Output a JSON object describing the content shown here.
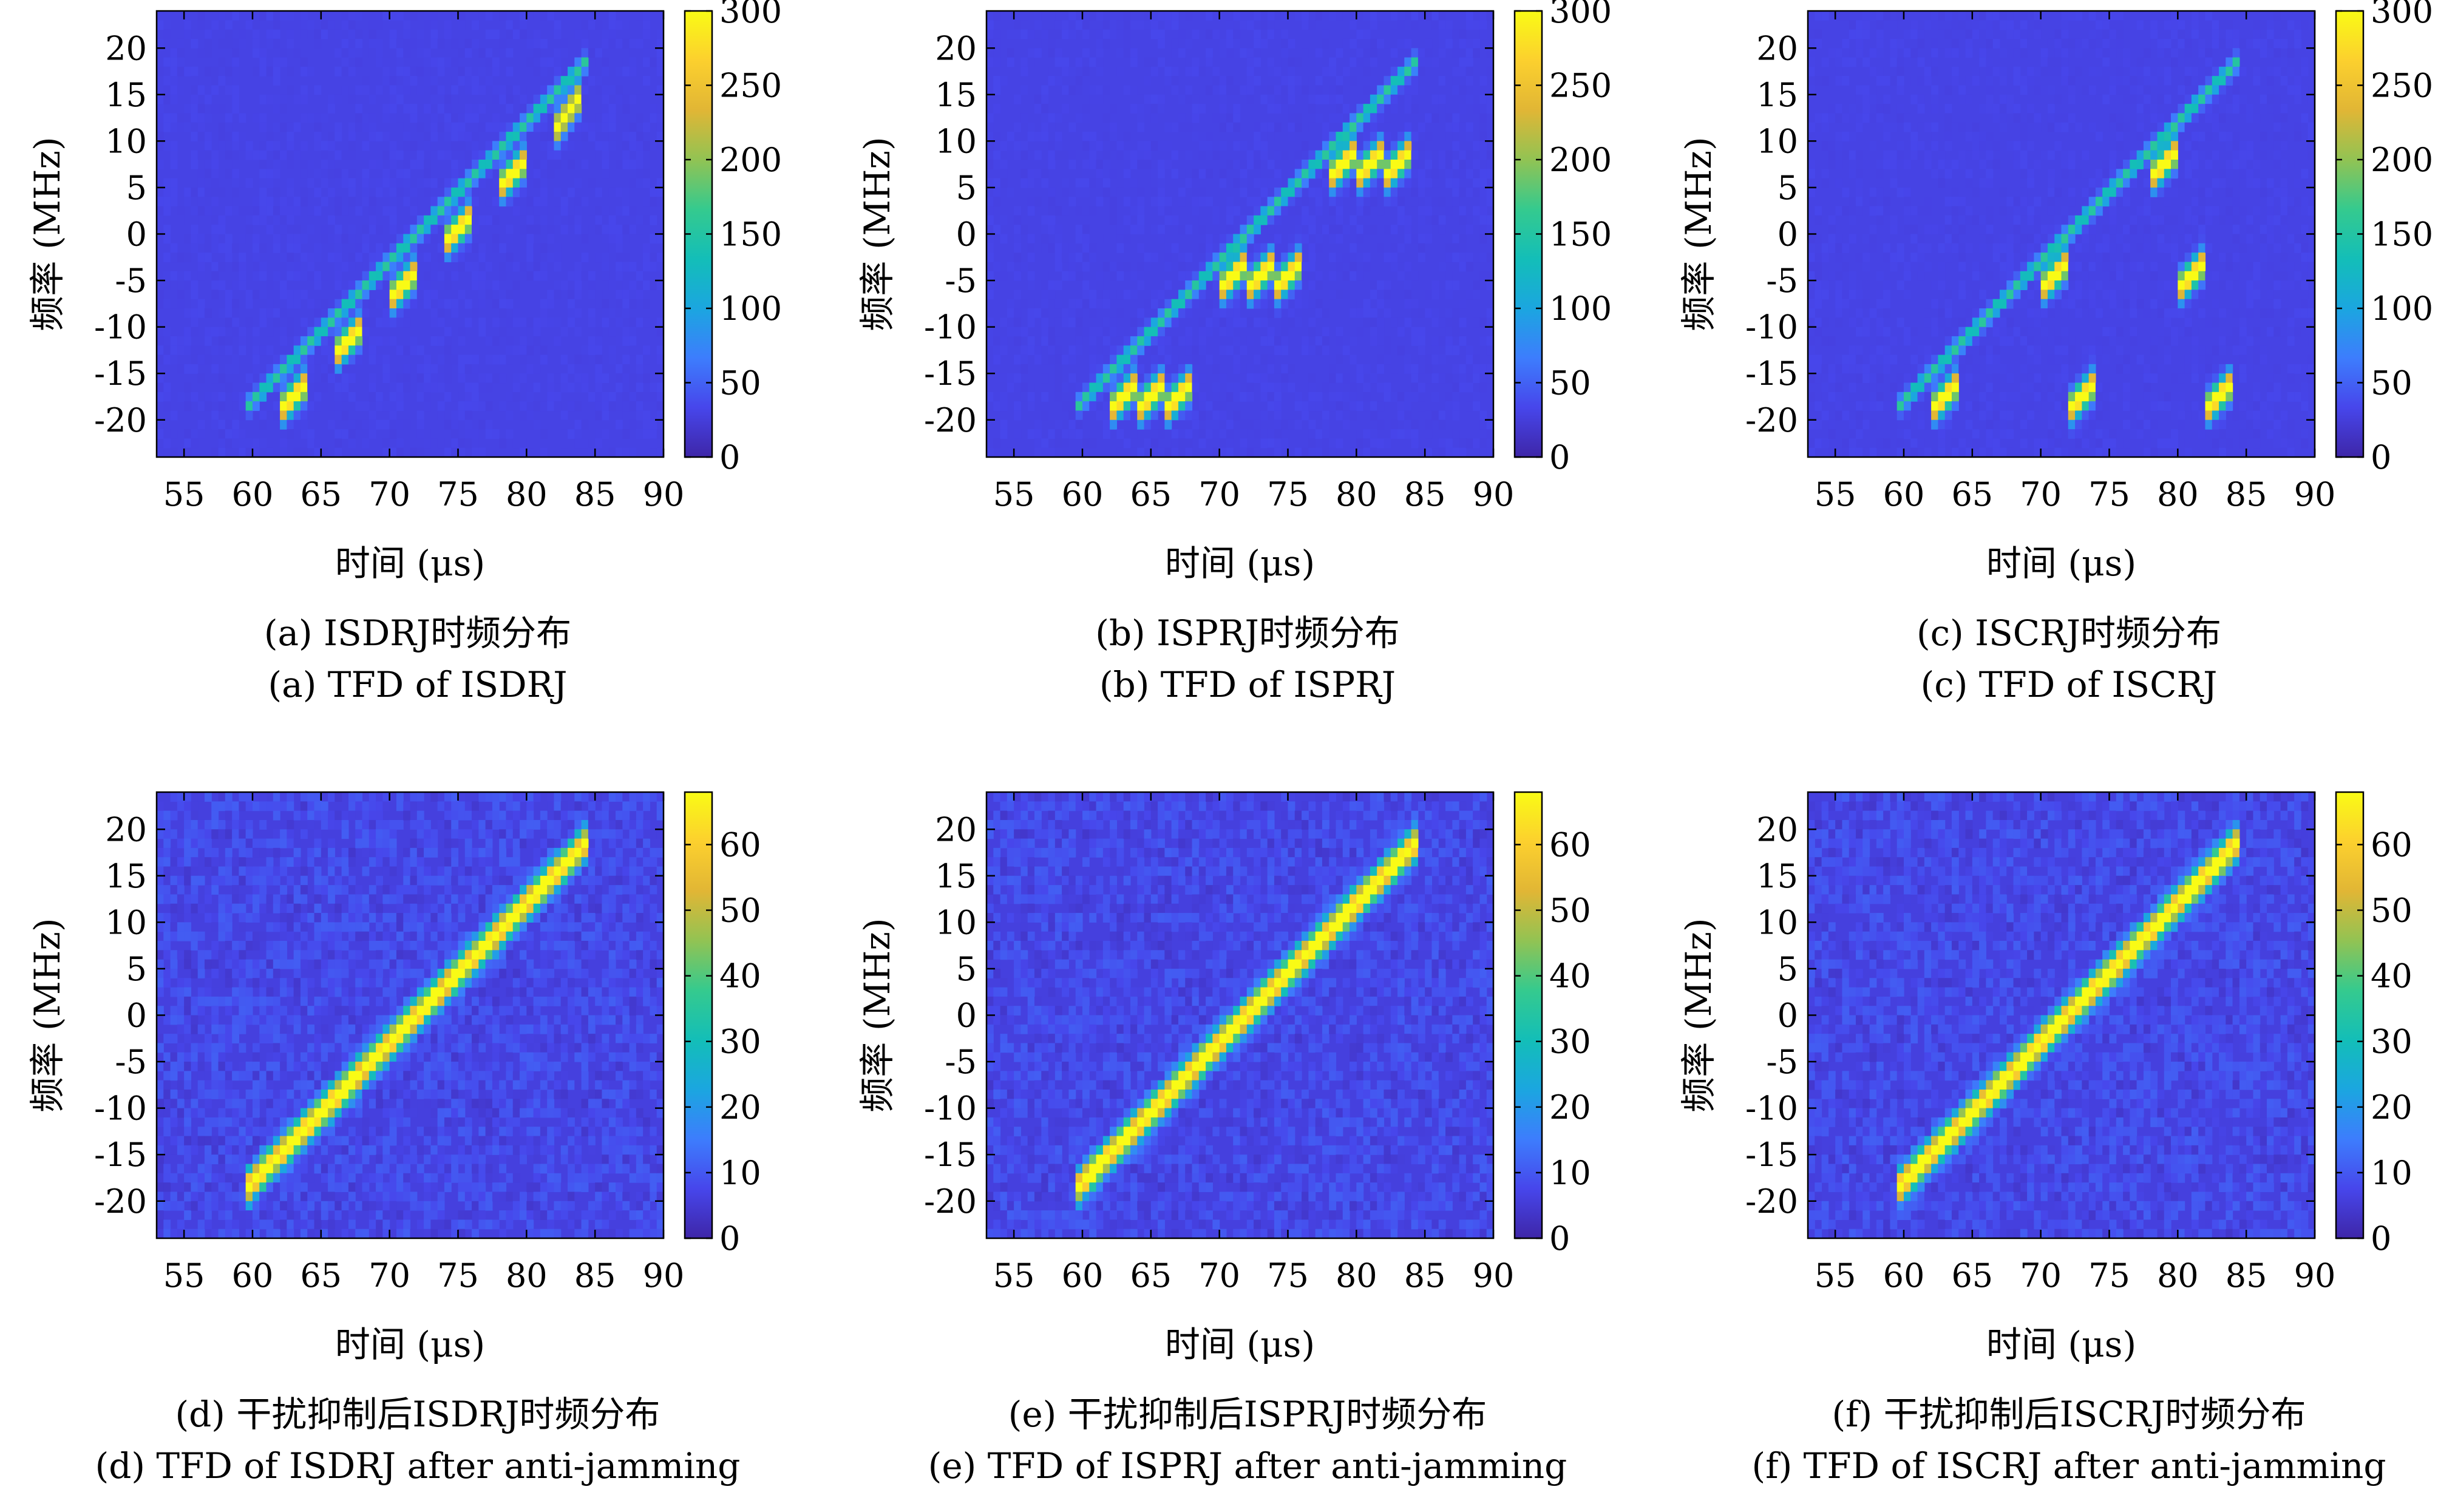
{
  "figure": {
    "colorscale": [
      "#3e26a8",
      "#4746eb",
      "#3d7dfd",
      "#1ba6e0",
      "#13beb8",
      "#35ca8e",
      "#92c353",
      "#e1b635",
      "#fcd02e",
      "#f9fb15"
    ]
  },
  "chart_data": [
    {
      "id": "a",
      "type": "heatmap",
      "caption_cn": "(a) ISDRJ时频分布",
      "caption_en": "(a) TFD of ISDRJ",
      "xlabel": "时间 (μs)",
      "ylabel": "频率 (MHz)",
      "xlim": [
        53,
        90
      ],
      "ylim": [
        -24,
        24
      ],
      "xticks": [
        55,
        60,
        65,
        70,
        75,
        80,
        85,
        90
      ],
      "yticks": [
        20,
        15,
        10,
        5,
        0,
        -5,
        -10,
        -15,
        -20
      ],
      "colorbar_max": 300,
      "colorbar_ticks": [
        300,
        250,
        200,
        150,
        100,
        50,
        0
      ],
      "background_level": 0.1,
      "noise_level": 0.02,
      "chirp": {
        "t_start": 60,
        "t_end": 84,
        "f_start": -18,
        "f_end": 18,
        "intensity": 0.42,
        "width_mhz": 0.8
      },
      "jamming_segments": [
        {
          "t_start": 62,
          "t_end": 64,
          "f_start": -19,
          "f_end": -16
        },
        {
          "t_start": 66,
          "t_end": 68,
          "f_start": -13,
          "f_end": -10
        },
        {
          "t_start": 70,
          "t_end": 72,
          "f_start": -7,
          "f_end": -4
        },
        {
          "t_start": 74,
          "t_end": 76,
          "f_start": -1,
          "f_end": 2
        },
        {
          "t_start": 78,
          "t_end": 80,
          "f_start": 5,
          "f_end": 8
        },
        {
          "t_start": 82,
          "t_end": 84,
          "f_start": 11,
          "f_end": 15
        }
      ]
    },
    {
      "id": "b",
      "type": "heatmap",
      "caption_cn": "(b) ISPRJ时频分布",
      "caption_en": "(b) TFD of ISPRJ",
      "xlabel": "时间 (μs)",
      "ylabel": "频率 (MHz)",
      "xlim": [
        53,
        90
      ],
      "ylim": [
        -24,
        24
      ],
      "xticks": [
        55,
        60,
        65,
        70,
        75,
        80,
        85,
        90
      ],
      "yticks": [
        20,
        15,
        10,
        5,
        0,
        -5,
        -10,
        -15,
        -20
      ],
      "colorbar_max": 300,
      "colorbar_ticks": [
        300,
        250,
        200,
        150,
        100,
        50,
        0
      ],
      "background_level": 0.1,
      "noise_level": 0.02,
      "chirp": {
        "t_start": 60,
        "t_end": 84,
        "f_start": -18,
        "f_end": 18,
        "intensity": 0.42,
        "width_mhz": 0.8
      },
      "jamming_segments": [
        {
          "t_start": 62,
          "t_end": 64,
          "f_start": -19,
          "f_end": -16
        },
        {
          "t_start": 64,
          "t_end": 66,
          "f_start": -19,
          "f_end": -16
        },
        {
          "t_start": 66,
          "t_end": 68,
          "f_start": -19,
          "f_end": -16
        },
        {
          "t_start": 70,
          "t_end": 72,
          "f_start": -6,
          "f_end": -3
        },
        {
          "t_start": 72,
          "t_end": 74,
          "f_start": -6,
          "f_end": -3
        },
        {
          "t_start": 74,
          "t_end": 76,
          "f_start": -6,
          "f_end": -3
        },
        {
          "t_start": 78,
          "t_end": 80,
          "f_start": 6,
          "f_end": 9
        },
        {
          "t_start": 80,
          "t_end": 82,
          "f_start": 6,
          "f_end": 9
        },
        {
          "t_start": 82,
          "t_end": 84,
          "f_start": 6,
          "f_end": 9
        }
      ]
    },
    {
      "id": "c",
      "type": "heatmap",
      "caption_cn": "(c) ISCRJ时频分布",
      "caption_en": "(c) TFD of ISCRJ",
      "xlabel": "时间 (μs)",
      "ylabel": "频率 (MHz)",
      "xlim": [
        53,
        90
      ],
      "ylim": [
        -24,
        24
      ],
      "xticks": [
        55,
        60,
        65,
        70,
        75,
        80,
        85,
        90
      ],
      "yticks": [
        20,
        15,
        10,
        5,
        0,
        -5,
        -10,
        -15,
        -20
      ],
      "colorbar_max": 300,
      "colorbar_ticks": [
        300,
        250,
        200,
        150,
        100,
        50,
        0
      ],
      "background_level": 0.1,
      "noise_level": 0.02,
      "chirp": {
        "t_start": 60,
        "t_end": 84,
        "f_start": -18,
        "f_end": 18,
        "intensity": 0.42,
        "width_mhz": 0.8
      },
      "jamming_segments": [
        {
          "t_start": 62,
          "t_end": 64,
          "f_start": -19,
          "f_end": -16
        },
        {
          "t_start": 70,
          "t_end": 72,
          "f_start": -6,
          "f_end": -3
        },
        {
          "t_start": 72,
          "t_end": 74,
          "f_start": -19,
          "f_end": -16
        },
        {
          "t_start": 78,
          "t_end": 80,
          "f_start": 6,
          "f_end": 9
        },
        {
          "t_start": 80,
          "t_end": 82,
          "f_start": -6,
          "f_end": -3
        },
        {
          "t_start": 82,
          "t_end": 84,
          "f_start": -19,
          "f_end": -16
        }
      ]
    },
    {
      "id": "d",
      "type": "heatmap",
      "caption_cn": "(d) 干扰抑制后ISDRJ时频分布",
      "caption_en": "(d) TFD of ISDRJ after anti-jamming",
      "xlabel": "时间 (μs)",
      "ylabel": "频率 (MHz)",
      "xlim": [
        53,
        90
      ],
      "ylim": [
        -24,
        24
      ],
      "xticks": [
        55,
        60,
        65,
        70,
        75,
        80,
        85,
        90
      ],
      "yticks": [
        20,
        15,
        10,
        5,
        0,
        -5,
        -10,
        -15,
        -20
      ],
      "colorbar_max": 68,
      "colorbar_ticks": [
        60,
        50,
        40,
        30,
        20,
        10,
        0
      ],
      "background_level": 0.09,
      "noise_level": 0.1,
      "chirp": {
        "t_start": 60,
        "t_end": 84,
        "f_start": -18,
        "f_end": 18,
        "intensity": 1.0,
        "width_mhz": 1.6
      },
      "jamming_segments": []
    },
    {
      "id": "e",
      "type": "heatmap",
      "caption_cn": "(e) 干扰抑制后ISPRJ时频分布",
      "caption_en": "(e) TFD of ISPRJ after anti-jamming",
      "xlabel": "时间 (μs)",
      "ylabel": "频率 (MHz)",
      "xlim": [
        53,
        90
      ],
      "ylim": [
        -24,
        24
      ],
      "xticks": [
        55,
        60,
        65,
        70,
        75,
        80,
        85,
        90
      ],
      "yticks": [
        20,
        15,
        10,
        5,
        0,
        -5,
        -10,
        -15,
        -20
      ],
      "colorbar_max": 68,
      "colorbar_ticks": [
        60,
        50,
        40,
        30,
        20,
        10,
        0
      ],
      "background_level": 0.09,
      "noise_level": 0.1,
      "chirp": {
        "t_start": 60,
        "t_end": 84,
        "f_start": -18,
        "f_end": 18,
        "intensity": 1.0,
        "width_mhz": 1.6
      },
      "jamming_segments": []
    },
    {
      "id": "f",
      "type": "heatmap",
      "caption_cn": "(f) 干扰抑制后ISCRJ时频分布",
      "caption_en": "(f) TFD of ISCRJ after anti-jamming",
      "xlabel": "时间 (μs)",
      "ylabel": "频率 (MHz)",
      "xlim": [
        53,
        90
      ],
      "ylim": [
        -24,
        24
      ],
      "xticks": [
        55,
        60,
        65,
        70,
        75,
        80,
        85,
        90
      ],
      "yticks": [
        20,
        15,
        10,
        5,
        0,
        -5,
        -10,
        -15,
        -20
      ],
      "colorbar_max": 68,
      "colorbar_ticks": [
        60,
        50,
        40,
        30,
        20,
        10,
        0
      ],
      "background_level": 0.09,
      "noise_level": 0.1,
      "chirp": {
        "t_start": 60,
        "t_end": 84,
        "f_start": -18,
        "f_end": 18,
        "intensity": 1.0,
        "width_mhz": 1.6
      },
      "jamming_segments": []
    }
  ]
}
